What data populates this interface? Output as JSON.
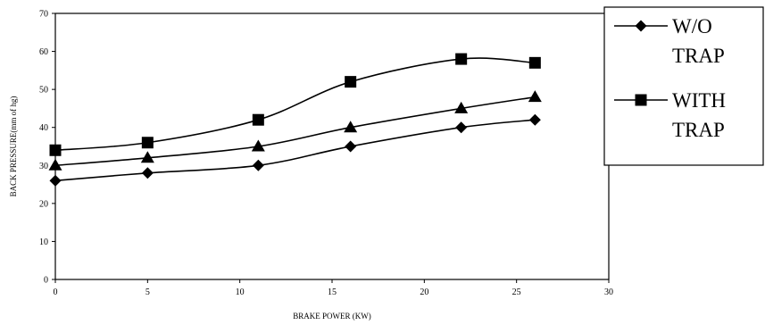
{
  "chart_data": {
    "type": "line",
    "xlabel": "BRAKE POWER  (KW)",
    "ylabel": "BACK PRESSURE(mm of hg)",
    "xlim": [
      0,
      30
    ],
    "ylim": [
      0,
      70
    ],
    "x_ticks": [
      0,
      5,
      10,
      15,
      20,
      25,
      30
    ],
    "y_ticks": [
      0,
      10,
      20,
      30,
      40,
      50,
      60,
      70
    ],
    "grid": false,
    "legend_position": "right",
    "x": [
      0,
      5,
      11,
      16,
      22,
      26
    ],
    "series": [
      {
        "name": "W/O TRAP",
        "marker": "diamond",
        "values": [
          26,
          28,
          30,
          35,
          40,
          42
        ]
      },
      {
        "name": "",
        "marker": "triangle",
        "values": [
          30,
          32,
          35,
          40,
          45,
          48
        ]
      },
      {
        "name": "WITH TRAP",
        "marker": "square",
        "values": [
          34,
          36,
          42,
          52,
          58,
          57
        ]
      }
    ],
    "legend": [
      {
        "marker": "diamond",
        "lines": [
          "W/O",
          "TRAP"
        ]
      },
      {
        "marker": "square",
        "lines": [
          "WITH",
          "TRAP"
        ]
      }
    ]
  }
}
